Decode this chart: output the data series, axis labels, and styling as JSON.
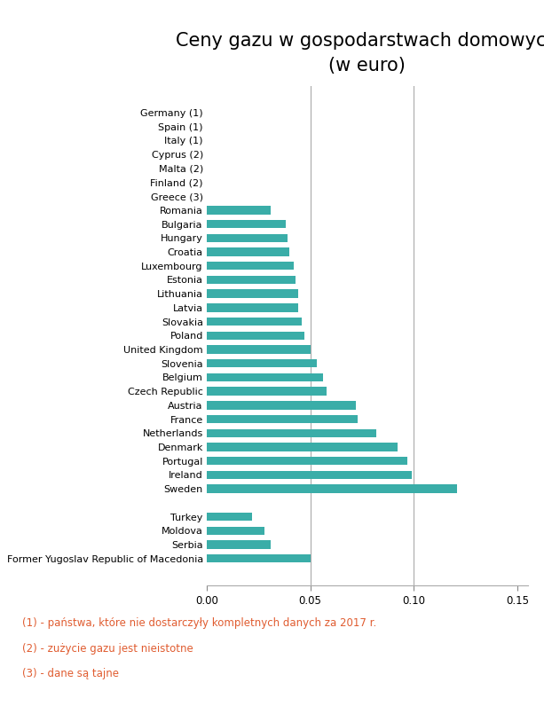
{
  "title": "Ceny gazu w gospodarstwach domowych\n(w euro)",
  "bar_color": "#3aada8",
  "categories": [
    "Germany (1)",
    "Spain (1)",
    "Italy (1)",
    "Cyprus (2)",
    "Malta (2)",
    "Finland (2)",
    "Greece (3)",
    "Romania",
    "Bulgaria",
    "Hungary",
    "Croatia",
    "Luxembourg",
    "Estonia",
    "Lithuania",
    "Latvia",
    "Slovakia",
    "Poland",
    "United Kingdom",
    "Slovenia",
    "Belgium",
    "Czech Republic",
    "Austria",
    "France",
    "Netherlands",
    "Denmark",
    "Portugal",
    "Ireland",
    "Sweden",
    "",
    "Turkey",
    "Moldova",
    "Serbia",
    "Former Yugoslav Republic of Macedonia"
  ],
  "values": [
    0,
    0,
    0,
    0,
    0,
    0,
    0,
    0.031,
    0.038,
    0.039,
    0.04,
    0.042,
    0.043,
    0.044,
    0.044,
    0.046,
    0.047,
    0.05,
    0.053,
    0.056,
    0.058,
    0.072,
    0.073,
    0.082,
    0.092,
    0.097,
    0.099,
    0.121,
    0,
    0.022,
    0.028,
    0.031,
    0.05
  ],
  "xlim": [
    0,
    0.155
  ],
  "xticks": [
    0.0,
    0.05,
    0.1,
    0.15
  ],
  "xtick_labels": [
    "0.00",
    "0.05",
    "0.10",
    "0.15"
  ],
  "vlines": [
    0.05,
    0.1
  ],
  "note1": "(1) - państwa, które nie dostarczyły kompletnych danych za 2017 r.",
  "note2": "(2) - zużycie gazu jest nieistotne",
  "note3": "(3) - dane są tajne",
  "note1_color": "#e05c30",
  "note2_color": "#e05c30",
  "note3_color": "#e05c30",
  "background_color": "#ffffff"
}
